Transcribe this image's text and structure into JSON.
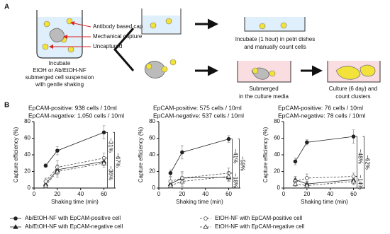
{
  "panel_a": {
    "label": "A",
    "beaker_labels": [
      "Antibody based capture",
      "Mechanical capture",
      "Uncaptured"
    ],
    "incubate": [
      "Incubate",
      "EtOH or Ab/EtOH-NF",
      "submerged cell suspension",
      "with gentle shaking"
    ],
    "top_step": [
      "Incubate (1 hour) in petri dishes",
      "and manually count cells"
    ],
    "submerged": [
      "Submerged",
      "in the culture media"
    ],
    "culture": [
      "Culture (6 day) and",
      "count clusters"
    ]
  },
  "panel_b_label": "B",
  "chart_data": [
    {
      "type": "line",
      "subtitles": [
        "EpCAM-positive: 938 cells / 10ml",
        "EpCAM-negative: 1,050 cells / 10ml"
      ],
      "xlabel": "Shaking time (min)",
      "ylabel": "Capture efficiency (%)",
      "x": [
        10,
        20,
        60
      ],
      "xlim": [
        0,
        70
      ],
      "xticks": [
        0,
        20,
        40,
        60
      ],
      "ylim": [
        0,
        80
      ],
      "yticks": [
        0,
        20,
        40,
        60,
        80
      ],
      "series": [
        {
          "name": "Ab/EtOH-NF with EpCAM-positive cell",
          "color": "#222",
          "marker": "circle",
          "filled": true,
          "dashed": false,
          "values": [
            27,
            45,
            67
          ],
          "errors": [
            2,
            5,
            8
          ]
        },
        {
          "name": "Ab/EtOH-NF with EpCAM-negative cell",
          "color": "#222",
          "marker": "triangle",
          "filled": true,
          "dashed": false,
          "values": [
            5,
            22,
            32
          ],
          "errors": [
            2,
            6,
            5
          ]
        },
        {
          "name": "EtOH-NF with EpCAM-positive cell",
          "color": "#444",
          "marker": "circle",
          "filled": false,
          "dashed": true,
          "values": [
            8,
            25,
            36
          ],
          "errors": [
            4,
            8,
            6
          ]
        },
        {
          "name": "EtOH-NF with EpCAM-negative cell",
          "color": "#444",
          "marker": "triangle",
          "filled": false,
          "dashed": true,
          "values": [
            3,
            20,
            30
          ],
          "errors": [
            3,
            7,
            5
          ]
        }
      ],
      "annotations": [
        "~31%",
        "~36%",
        "~67%"
      ]
    },
    {
      "type": "line",
      "subtitles": [
        "EpCAM-positive: 575 cells / 10ml",
        "EpCAM-negative: 537 cells / 10ml"
      ],
      "xlabel": "Shaking time (min)",
      "ylabel": "Capture efficiency (%)",
      "x": [
        10,
        20,
        60
      ],
      "xlim": [
        0,
        70
      ],
      "xticks": [
        0,
        20,
        40,
        60
      ],
      "ylim": [
        0,
        80
      ],
      "yticks": [
        0,
        20,
        40,
        60,
        80
      ],
      "series": [
        {
          "color": "#222",
          "marker": "circle",
          "filled": true,
          "dashed": false,
          "values": [
            18,
            43,
            59
          ],
          "errors": [
            4,
            8,
            4
          ]
        },
        {
          "color": "#222",
          "marker": "triangle",
          "filled": true,
          "dashed": false,
          "values": [
            5,
            12,
            13
          ],
          "errors": [
            3,
            6,
            5
          ]
        },
        {
          "color": "#444",
          "marker": "circle",
          "filled": false,
          "dashed": true,
          "values": [
            8,
            12,
            18
          ],
          "errors": [
            5,
            8,
            6
          ]
        },
        {
          "color": "#444",
          "marker": "triangle",
          "filled": false,
          "dashed": true,
          "values": [
            3,
            8,
            14
          ],
          "errors": [
            3,
            6,
            5
          ]
        }
      ],
      "annotations": [
        "~41%",
        "~18%",
        "~59%"
      ]
    },
    {
      "type": "line",
      "subtitles": [
        "EpCAM-positive: 76 cells / 10ml",
        "EpCAM-negative: 78 cells / 10ml"
      ],
      "xlabel": "Shaking time (min)",
      "ylabel": "Capture efficiency (%)",
      "x": [
        10,
        20,
        60
      ],
      "xlim": [
        0,
        70
      ],
      "xticks": [
        0,
        20,
        40,
        60
      ],
      "ylim": [
        0,
        80
      ],
      "yticks": [
        0,
        20,
        40,
        60,
        80
      ],
      "series": [
        {
          "color": "#222",
          "marker": "circle",
          "filled": true,
          "dashed": false,
          "values": [
            32,
            55,
            62
          ],
          "errors": [
            4,
            3,
            8
          ]
        },
        {
          "color": "#222",
          "marker": "triangle",
          "filled": true,
          "dashed": false,
          "values": [
            10,
            5,
            10
          ],
          "errors": [
            4,
            3,
            5
          ]
        },
        {
          "color": "#444",
          "marker": "circle",
          "filled": false,
          "dashed": true,
          "values": [
            8,
            12,
            14
          ],
          "errors": [
            4,
            5,
            4
          ]
        },
        {
          "color": "#444",
          "marker": "triangle",
          "filled": false,
          "dashed": true,
          "values": [
            5,
            3,
            8
          ],
          "errors": [
            3,
            3,
            4
          ]
        }
      ],
      "annotations": [
        "~48%",
        "~14%",
        "~62%"
      ]
    }
  ]
}
